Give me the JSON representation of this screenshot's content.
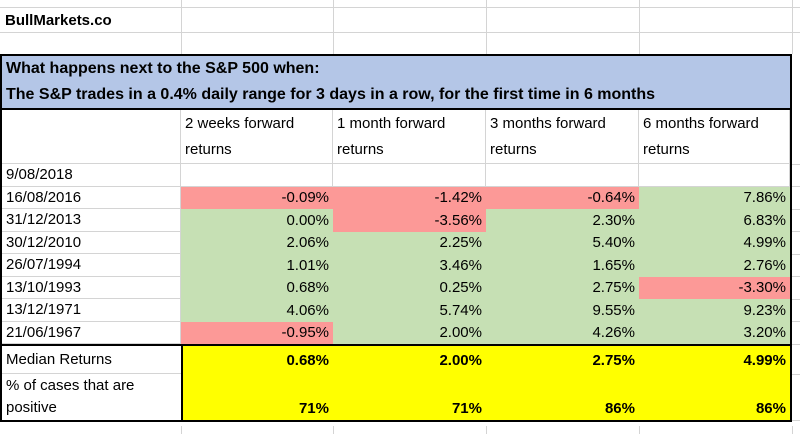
{
  "brand": "BullMarkets.co",
  "title": {
    "line1": "What happens next to the S&P 500 when:",
    "line2": "The S&P trades in a 0.4% daily range for 3 days in a row, for the first time in 6 months"
  },
  "table": {
    "column_headers": [
      "2 weeks forward returns",
      "1 month forward returns",
      "3 months forward returns",
      "6 months forward returns"
    ],
    "rows": [
      {
        "date": "9/08/2018",
        "values": [
          "",
          "",
          "",
          ""
        ],
        "colors": [
          "none",
          "none",
          "none",
          "none"
        ]
      },
      {
        "date": "16/08/2016",
        "values": [
          "-0.09%",
          "-1.42%",
          "-0.64%",
          "7.86%"
        ],
        "colors": [
          "red",
          "red",
          "red",
          "green"
        ]
      },
      {
        "date": "31/12/2013",
        "values": [
          "0.00%",
          "-3.56%",
          "2.30%",
          "6.83%"
        ],
        "colors": [
          "green",
          "red",
          "green",
          "green"
        ]
      },
      {
        "date": "30/12/2010",
        "values": [
          "2.06%",
          "2.25%",
          "5.40%",
          "4.99%"
        ],
        "colors": [
          "green",
          "green",
          "green",
          "green"
        ]
      },
      {
        "date": "26/07/1994",
        "values": [
          "1.01%",
          "3.46%",
          "1.65%",
          "2.76%"
        ],
        "colors": [
          "green",
          "green",
          "green",
          "green"
        ]
      },
      {
        "date": "13/10/1993",
        "values": [
          "0.68%",
          "0.25%",
          "2.75%",
          "-3.30%"
        ],
        "colors": [
          "green",
          "green",
          "green",
          "red"
        ]
      },
      {
        "date": "13/12/1971",
        "values": [
          "4.06%",
          "5.74%",
          "9.55%",
          "9.23%"
        ],
        "colors": [
          "green",
          "green",
          "green",
          "green"
        ]
      },
      {
        "date": "21/06/1967",
        "values": [
          "-0.95%",
          "2.00%",
          "4.26%",
          "3.20%"
        ],
        "colors": [
          "red",
          "green",
          "green",
          "green"
        ]
      }
    ],
    "summary": {
      "median_label": "Median Returns",
      "median_values": [
        "0.68%",
        "2.00%",
        "2.75%",
        "4.99%"
      ],
      "positive_label": "% of cases that are positive",
      "positive_values": [
        "71%",
        "71%",
        "86%",
        "86%"
      ]
    }
  },
  "colors": {
    "red": "#FC9997",
    "green": "#C6E0B4",
    "blue_header": "#B4C6E7",
    "yellow": "#FFFF00",
    "gridline": "#D4D4D4"
  }
}
